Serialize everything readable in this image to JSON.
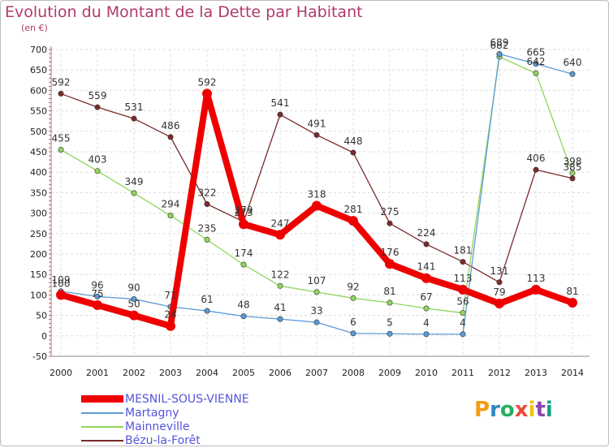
{
  "header": {
    "title": "Evolution du Montant de la Dette par Habitant",
    "unit": "(en €)"
  },
  "logo": {
    "text": "Proxiti",
    "colors": [
      "#f39c12",
      "#2e86c1",
      "#27ae60",
      "#e74c3c",
      "#f1c40f",
      "#8e44ad",
      "#16a085"
    ]
  },
  "chart_data": {
    "type": "line",
    "title": "Evolution du Montant de la Dette par Habitant",
    "ylabel": "(en €)",
    "xlabel": "",
    "x": [
      "2000",
      "2001",
      "2002",
      "2003",
      "2004",
      "2005",
      "2006",
      "2007",
      "2008",
      "2009",
      "2010",
      "2011",
      "2012",
      "2013",
      "2014"
    ],
    "ylim": [
      -50,
      700
    ],
    "yticks": [
      -50,
      0,
      50,
      100,
      150,
      200,
      250,
      300,
      350,
      400,
      450,
      500,
      550,
      600,
      650,
      700
    ],
    "grid": true,
    "legend_position": "bottom",
    "series": [
      {
        "name": "Bézu-la-Forêt",
        "color": "#7a2a2a",
        "width": 1.3,
        "values": [
          592,
          559,
          531,
          486,
          322,
          279,
          541,
          491,
          448,
          275,
          224,
          181,
          131,
          406,
          385
        ]
      },
      {
        "name": "Mainneville",
        "color": "#8fd65a",
        "width": 1.3,
        "values": [
          455,
          403,
          349,
          294,
          235,
          174,
          122,
          107,
          92,
          81,
          67,
          56,
          682,
          642,
          398
        ]
      },
      {
        "name": "Martagny",
        "color": "#5b9bd5",
        "width": 1.3,
        "values": [
          109,
          96,
          90,
          71,
          61,
          48,
          41,
          33,
          6,
          5,
          4,
          4,
          689,
          665,
          640
        ]
      },
      {
        "name": "MESNIL-SOUS-VIENNE",
        "color": "#ee0000",
        "width": 8,
        "values": [
          100,
          75,
          50,
          24,
          592,
          273,
          247,
          318,
          281,
          176,
          141,
          113,
          79,
          113,
          81
        ]
      }
    ],
    "labels": {
      "Bézu-la-Forêt": [
        "592",
        "559",
        "531",
        "486",
        "322",
        "279",
        "541",
        "491",
        "448",
        "275",
        "224",
        "181",
        "131",
        "406",
        "385"
      ],
      "Mainneville": [
        "455",
        "403",
        "349",
        "294",
        "235",
        "174",
        "122",
        "107",
        "92",
        "81",
        "67",
        "56",
        "682",
        "642",
        "398"
      ],
      "Martagny": [
        "109",
        "96",
        "90",
        "71",
        "61",
        "48",
        "41",
        "33",
        "6",
        "5",
        "4",
        "4",
        "689",
        "665",
        "640"
      ],
      "MESNIL-SOUS-VIENNE": [
        "100",
        "75",
        "50",
        "24",
        "592",
        "273",
        "247",
        "318",
        "281",
        "176",
        "141",
        "113",
        "79",
        "113",
        "81"
      ]
    },
    "legend_order": [
      "MESNIL-SOUS-VIENNE",
      "Martagny",
      "Mainneville",
      "Bézu-la-Forêt"
    ],
    "legend_text_color": "#5555dd"
  }
}
